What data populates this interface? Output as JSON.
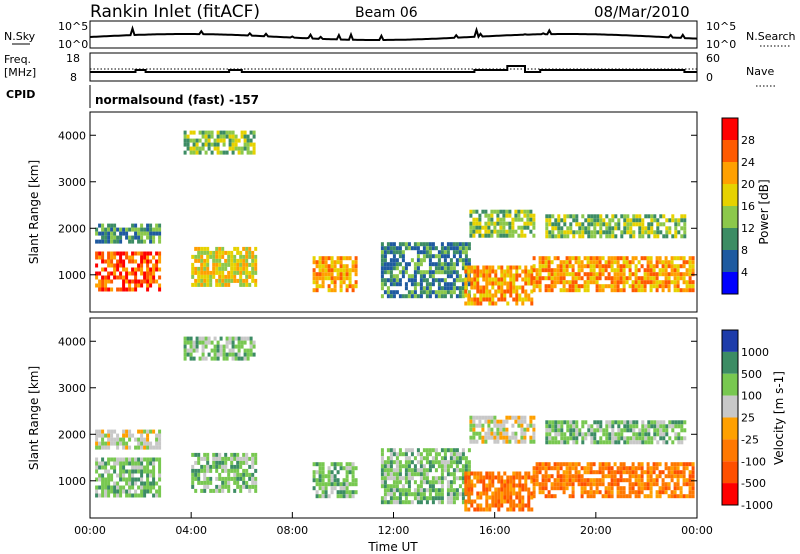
{
  "header": {
    "station": "Rankin Inlet (fitACF)",
    "beam": "Beam 06",
    "date": "08/Mar/2010"
  },
  "panels": {
    "nsky": {
      "label": "N.Sky",
      "ticks": [
        "10^5",
        "10^0"
      ],
      "right_label": "N.Search",
      "right_ticks": [
        "10^5",
        "10^0"
      ]
    },
    "freq": {
      "label_top": "Freq.",
      "label_mid": "[MHz]",
      "ticks": [
        "18",
        "8"
      ],
      "right_label": "Nave",
      "right_ticks": [
        "60",
        "0"
      ]
    },
    "cpid": {
      "label": "CPID",
      "text": "normalsound (fast) -157"
    }
  },
  "chart_data": [
    {
      "type": "heatmap",
      "quantity": "Power",
      "unit": "dB",
      "ylabel": "Slant Range [km]",
      "ylim": [
        200,
        4500
      ],
      "xlim": [
        0,
        24
      ],
      "yticks": [
        "1000",
        "2000",
        "3000",
        "4000"
      ],
      "colorbar_label": "Power [dB]",
      "colorbar_ticks": [
        "28",
        "24",
        "20",
        "16",
        "12",
        "8",
        "4"
      ],
      "colorbar_colors": [
        "#ff0000",
        "#ff5a00",
        "#ffa000",
        "#e6d200",
        "#8cc84b",
        "#3c8c64",
        "#1e5aa0",
        "#0000ff"
      ],
      "regions": [
        {
          "x": [
            0.2,
            2.8
          ],
          "y": [
            700,
            1500
          ],
          "v": 24
        },
        {
          "x": [
            4.0,
            6.5
          ],
          "y": [
            800,
            1600
          ],
          "v": 18
        },
        {
          "x": [
            8.8,
            10.5
          ],
          "y": [
            700,
            1400
          ],
          "v": 22
        },
        {
          "x": [
            11.5,
            15.0
          ],
          "y": [
            500,
            1700
          ],
          "v": 10
        },
        {
          "x": [
            14.8,
            17.5
          ],
          "y": [
            400,
            1200
          ],
          "v": 20
        },
        {
          "x": [
            17.5,
            23.8
          ],
          "y": [
            700,
            1400
          ],
          "v": 22
        },
        {
          "x": [
            0.2,
            2.8
          ],
          "y": [
            1700,
            2100
          ],
          "v": 8
        },
        {
          "x": [
            15.0,
            17.5
          ],
          "y": [
            1800,
            2400
          ],
          "v": 12
        },
        {
          "x": [
            18.0,
            23.5
          ],
          "y": [
            1800,
            2300
          ],
          "v": 12
        },
        {
          "x": [
            3.7,
            6.5
          ],
          "y": [
            3600,
            4100
          ],
          "v": 14
        }
      ]
    },
    {
      "type": "heatmap",
      "quantity": "Velocity",
      "unit": "m s^-1",
      "ylabel": "Slant Range [km]",
      "xlabel": "Time UT",
      "ylim": [
        200,
        4500
      ],
      "xlim": [
        0,
        24
      ],
      "yticks": [
        "1000",
        "2000",
        "3000",
        "4000"
      ],
      "xticks": [
        "00:00",
        "04:00",
        "08:00",
        "12:00",
        "16:00",
        "20:00",
        "00:00"
      ],
      "colorbar_label": "Velocity [m s-1]",
      "colorbar_ticks": [
        "1000",
        "500",
        "100",
        "25",
        "-25",
        "-100",
        "-500",
        "-1000"
      ],
      "colorbar_colors": [
        "#1e3caa",
        "#3c8c64",
        "#78c850",
        "#c8c8c8",
        "#ffa000",
        "#ff7800",
        "#ff5000",
        "#ff0000"
      ],
      "regions": [
        {
          "x": [
            0.2,
            2.8
          ],
          "y": [
            700,
            1500
          ],
          "v": 100
        },
        {
          "x": [
            4.0,
            6.5
          ],
          "y": [
            800,
            1600
          ],
          "v": 300
        },
        {
          "x": [
            8.8,
            10.5
          ],
          "y": [
            700,
            1400
          ],
          "v": 200
        },
        {
          "x": [
            11.5,
            15.0
          ],
          "y": [
            500,
            1700
          ],
          "v": 50
        },
        {
          "x": [
            14.8,
            17.5
          ],
          "y": [
            400,
            1200
          ],
          "v": -300
        },
        {
          "x": [
            17.5,
            23.8
          ],
          "y": [
            700,
            1400
          ],
          "v": -300
        },
        {
          "x": [
            0.2,
            2.8
          ],
          "y": [
            1700,
            2100
          ],
          "v": 0
        },
        {
          "x": [
            15.0,
            17.5
          ],
          "y": [
            1800,
            2400
          ],
          "v": 0
        },
        {
          "x": [
            18.0,
            23.5
          ],
          "y": [
            1800,
            2300
          ],
          "v": 60
        },
        {
          "x": [
            3.7,
            6.5
          ],
          "y": [
            3600,
            4100
          ],
          "v": 300
        }
      ]
    }
  ]
}
